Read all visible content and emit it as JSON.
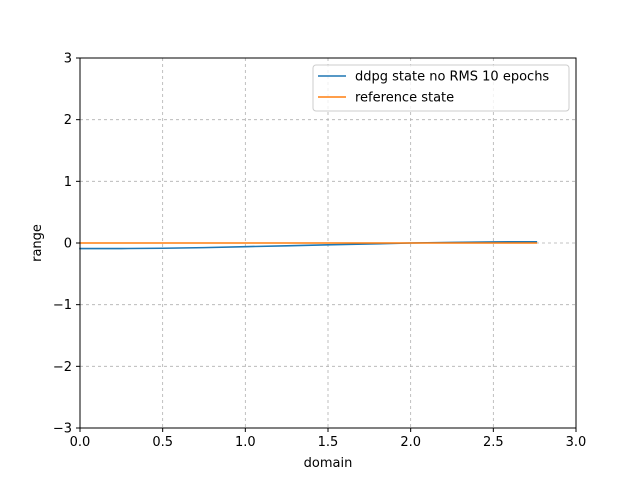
{
  "chart_data": {
    "type": "line",
    "xlabel": "domain",
    "ylabel": "range",
    "xlim": [
      0,
      3
    ],
    "ylim": [
      -3,
      3
    ],
    "xticks": [
      0,
      0.5,
      1,
      1.5,
      2,
      2.5,
      3
    ],
    "xtick_labels": [
      "0.0",
      "0.5",
      "1.0",
      "1.5",
      "2.0",
      "2.5",
      "3.0"
    ],
    "yticks": [
      -3,
      -2,
      -1,
      0,
      1,
      2,
      3
    ],
    "ytick_labels": [
      "−3",
      "−2",
      "−1",
      "0",
      "1",
      "2",
      "3"
    ],
    "grid": true,
    "legend_position": "top-right",
    "series": [
      {
        "name": "ddpg state no RMS 10 epochs",
        "color": "#1f77b4",
        "x": [
          0,
          0.25,
          0.5,
          0.75,
          1.0,
          1.25,
          1.5,
          1.75,
          2.0,
          2.25,
          2.5,
          2.76
        ],
        "y": [
          -0.09,
          -0.09,
          -0.085,
          -0.075,
          -0.06,
          -0.045,
          -0.03,
          -0.015,
          0.0,
          0.01,
          0.018,
          0.02
        ]
      },
      {
        "name": "reference state",
        "color": "#ff7f0e",
        "x": [
          0,
          0.5,
          1.0,
          1.5,
          2.0,
          2.5,
          2.76
        ],
        "y": [
          0.0,
          0.0,
          0.0,
          0.0,
          0.0,
          0.0,
          0.0
        ]
      }
    ]
  }
}
